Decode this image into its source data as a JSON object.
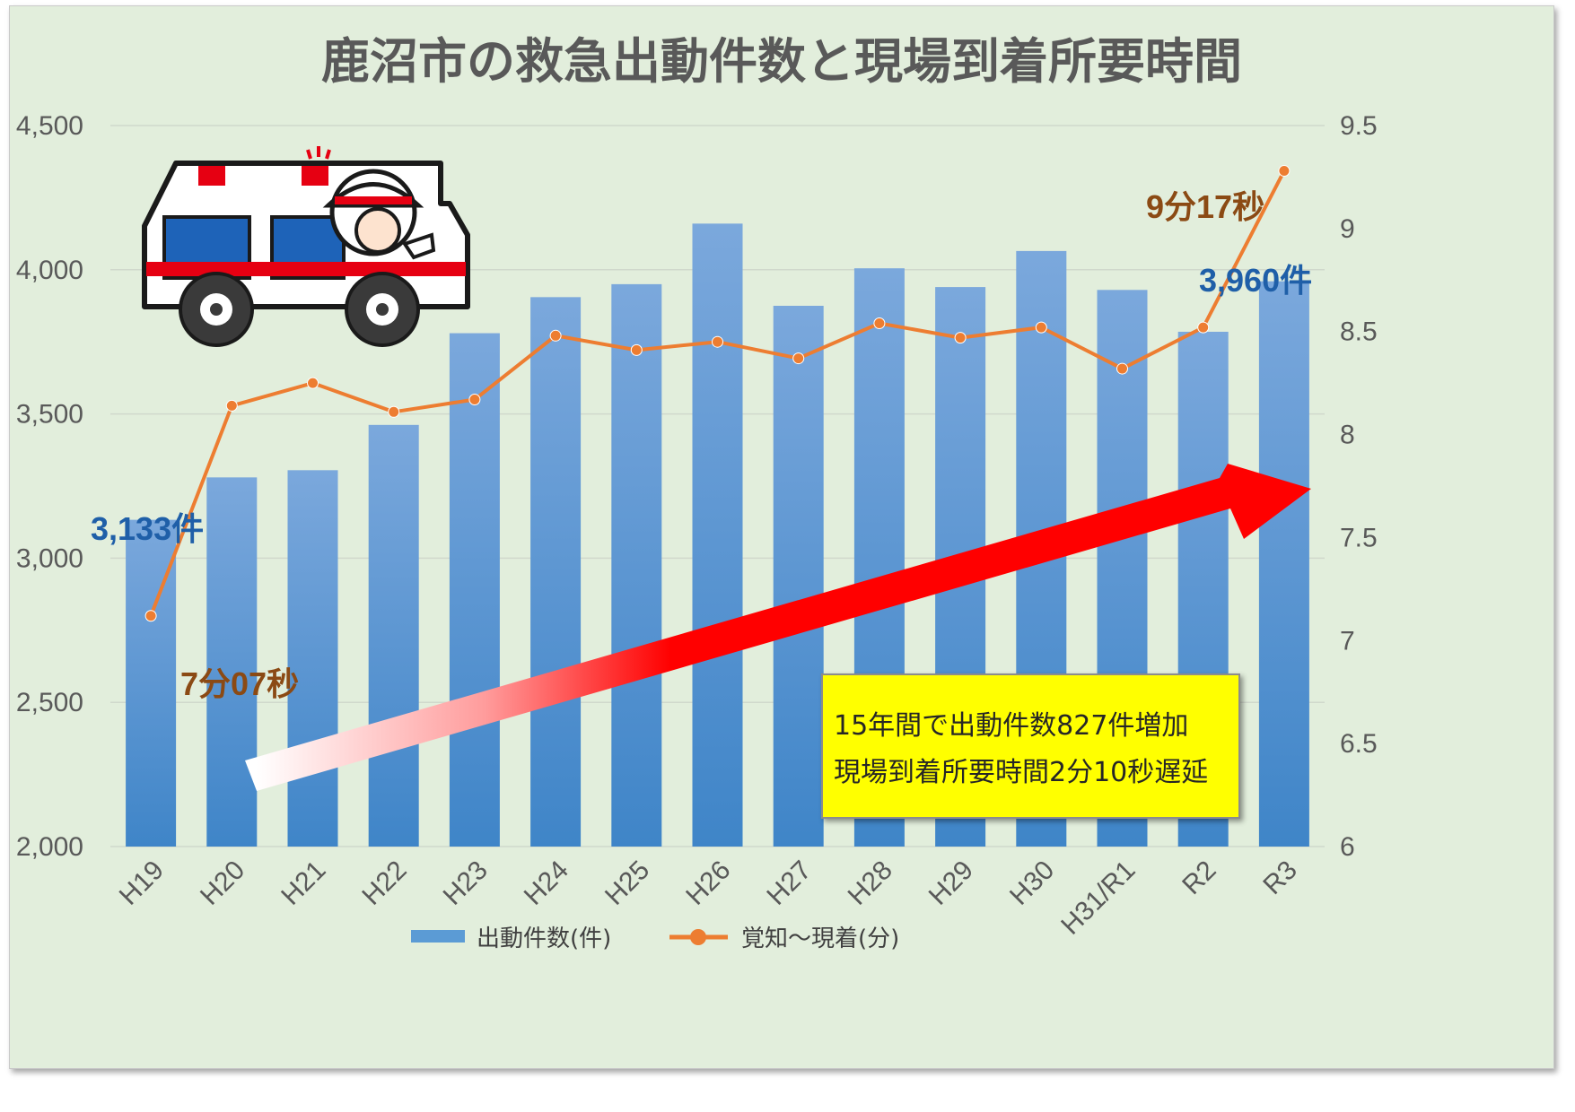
{
  "chart_data": {
    "type": "bar",
    "title": "鹿沼市の救急出動件数と現場到着所要時間",
    "categories": [
      "H19",
      "H20",
      "H21",
      "H22",
      "H23",
      "H24",
      "H25",
      "H26",
      "H27",
      "H28",
      "H29",
      "H30",
      "H31/R1",
      "R2",
      "R3"
    ],
    "series": [
      {
        "name": "出動件数(件)",
        "type": "bar",
        "axis": "left",
        "values": [
          3133,
          3280,
          3305,
          3462,
          3780,
          3905,
          3950,
          4160,
          3875,
          4005,
          3940,
          4065,
          3930,
          3785,
          3960
        ]
      },
      {
        "name": "覚知～現着(分)",
        "type": "line",
        "axis": "right",
        "values": [
          7.12,
          8.14,
          8.25,
          8.11,
          8.17,
          8.48,
          8.41,
          8.45,
          8.37,
          8.54,
          8.47,
          8.52,
          8.32,
          8.52,
          9.28
        ]
      }
    ],
    "y_left": {
      "min": 2000,
      "max": 4500,
      "ticks": [
        "2,000",
        "2,500",
        "3,000",
        "3,500",
        "4,000",
        "4,500"
      ]
    },
    "y_right": {
      "min": 6,
      "max": 9.5,
      "ticks": [
        "6",
        "6.5",
        "7",
        "7.5",
        "8",
        "8.5",
        "9",
        "9.5"
      ]
    },
    "grid": true,
    "legend_position": "bottom",
    "annotations": {
      "first_count": "3,133件",
      "last_count": "3,960件",
      "first_time": "7分07秒",
      "last_time": "9分17秒",
      "note_line1": "15年間で出動件数827件増加",
      "note_line2": "現場到着所要時間2分10秒遅延"
    }
  },
  "colors": {
    "background": "#e2eedc",
    "bar_top": "#7ba8dc",
    "bar_bottom": "#3f85c8",
    "line": "#ed7d31",
    "arrow": "#ff0000",
    "note_box": "#ffff00",
    "blue_label": "#1f5fa8",
    "brown_label": "#8b4a14"
  },
  "icons": {
    "illustration": "ambulance-with-driver-icon"
  }
}
